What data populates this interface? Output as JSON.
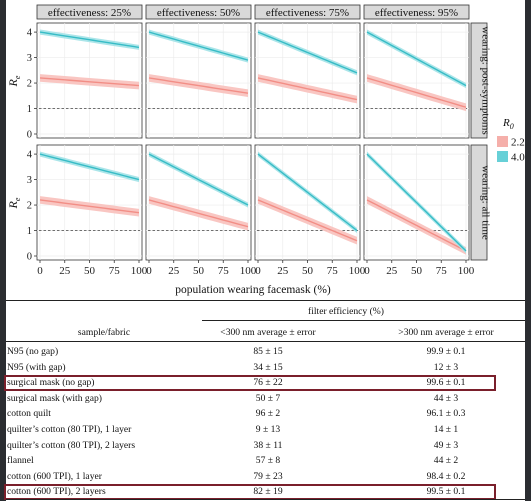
{
  "figure": {
    "panel_titles": [
      "effectiveness: 25%",
      "effectiveness: 50%",
      "effectiveness: 75%",
      "effectiveness: 95%"
    ],
    "row_strips": [
      "wearing: post-symptoms",
      "wearing: all time"
    ],
    "y_label": "R",
    "y_label_sub": "e",
    "x_label": "population wearing facemask (%)",
    "x_ticks": [
      "0",
      "25",
      "50",
      "75",
      "100"
    ],
    "y_ticks": [
      "0",
      "1",
      "2",
      "3",
      "4"
    ],
    "legend": {
      "title": "R",
      "title_sub": "0",
      "entries": [
        {
          "label": "2.2",
          "color": "#f4a6a1"
        },
        {
          "label": "4.0",
          "color": "#57cbd3"
        }
      ]
    },
    "colors": {
      "r22_fill": "#f9c3bf",
      "r22_line": "#f28e86",
      "r40_fill": "#a6e4e8",
      "r40_line": "#37bcc6",
      "panel_bg": "#ffffff",
      "strip_bg": "#d9d9d9"
    }
  },
  "chart_data": {
    "type": "line",
    "title": "",
    "xlabel": "population wearing facemask (%)",
    "ylabel": "Re",
    "xlim": [
      0,
      100
    ],
    "ylim": [
      0,
      4.2
    ],
    "reference_line": 1,
    "panels": [
      {
        "row": "wearing: post-symptoms",
        "col": "effectiveness: 25%",
        "series": [
          {
            "name": "2.2",
            "start": 2.2,
            "end": 1.9,
            "band": 0.15
          },
          {
            "name": "4.0",
            "start": 4.0,
            "end": 3.4,
            "band": 0.1
          }
        ]
      },
      {
        "row": "wearing: post-symptoms",
        "col": "effectiveness: 50%",
        "series": [
          {
            "name": "2.2",
            "start": 2.2,
            "end": 1.6,
            "band": 0.15
          },
          {
            "name": "4.0",
            "start": 4.0,
            "end": 2.9,
            "band": 0.1
          }
        ]
      },
      {
        "row": "wearing: post-symptoms",
        "col": "effectiveness: 75%",
        "series": [
          {
            "name": "2.2",
            "start": 2.2,
            "end": 1.35,
            "band": 0.15
          },
          {
            "name": "4.0",
            "start": 4.0,
            "end": 2.4,
            "band": 0.1
          }
        ]
      },
      {
        "row": "wearing: post-symptoms",
        "col": "effectiveness: 95%",
        "series": [
          {
            "name": "2.2",
            "start": 2.2,
            "end": 1.05,
            "band": 0.15
          },
          {
            "name": "4.0",
            "start": 4.0,
            "end": 1.9,
            "band": 0.1
          }
        ]
      },
      {
        "row": "wearing: all time",
        "col": "effectiveness: 25%",
        "series": [
          {
            "name": "2.2",
            "start": 2.2,
            "end": 1.7,
            "band": 0.15
          },
          {
            "name": "4.0",
            "start": 4.0,
            "end": 3.0,
            "band": 0.1
          }
        ]
      },
      {
        "row": "wearing: all time",
        "col": "effectiveness: 50%",
        "series": [
          {
            "name": "2.2",
            "start": 2.2,
            "end": 1.15,
            "band": 0.15
          },
          {
            "name": "4.0",
            "start": 4.0,
            "end": 2.0,
            "band": 0.1
          }
        ]
      },
      {
        "row": "wearing: all time",
        "col": "effectiveness: 75%",
        "series": [
          {
            "name": "2.2",
            "start": 2.2,
            "end": 0.6,
            "band": 0.15
          },
          {
            "name": "4.0",
            "start": 4.0,
            "end": 1.0,
            "band": 0.1
          }
        ]
      },
      {
        "row": "wearing: all time",
        "col": "effectiveness: 95%",
        "series": [
          {
            "name": "2.2",
            "start": 2.2,
            "end": 0.2,
            "band": 0.15
          },
          {
            "name": "4.0",
            "start": 4.0,
            "end": 0.2,
            "band": 0.1
          }
        ]
      }
    ]
  },
  "table": {
    "group_header": "filter efficiency (%)",
    "col_headers": [
      "sample/fabric",
      "<300 nm average ± error",
      ">300 nm average ± error"
    ],
    "rows": [
      {
        "name": "N95 (no gap)",
        "a": "85 ± 15",
        "b": "99.9 ± 0.1"
      },
      {
        "name": "N95 (with gap)",
        "a": "34 ± 15",
        "b": "12 ± 3"
      },
      {
        "name": "surgical mask (no gap)",
        "a": "76 ± 22",
        "b": "99.6 ± 0.1"
      },
      {
        "name": "surgical mask (with gap)",
        "a": "50 ± 7",
        "b": "44 ± 3"
      },
      {
        "name": "cotton quilt",
        "a": "96 ± 2",
        "b": "96.1 ± 0.3"
      },
      {
        "name": "quilter’s cotton (80 TPI), 1 layer",
        "a": "9 ± 13",
        "b": "14 ± 1"
      },
      {
        "name": "quilter’s cotton (80 TPI), 2 layers",
        "a": "38 ± 11",
        "b": "49 ± 3"
      },
      {
        "name": "flannel",
        "a": "57 ± 8",
        "b": "44 ± 2"
      },
      {
        "name": "cotton (600 TPI), 1 layer",
        "a": "79 ± 23",
        "b": "98.4 ± 0.2"
      },
      {
        "name": "cotton (600 TPI), 2 layers",
        "a": "82 ± 19",
        "b": "99.5 ± 0.1"
      }
    ],
    "highlighted_rows": [
      2,
      9
    ]
  }
}
